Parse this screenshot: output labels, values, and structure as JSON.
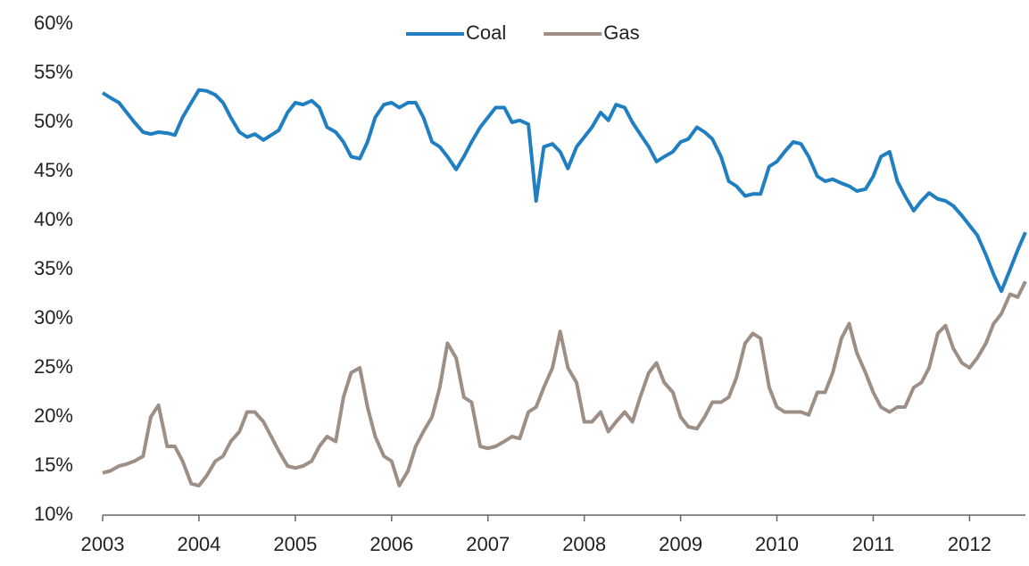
{
  "chart_data": {
    "type": "line",
    "x": [
      2003,
      2003.08,
      2003.17,
      2003.25,
      2003.33,
      2003.42,
      2003.5,
      2003.58,
      2003.67,
      2003.75,
      2003.83,
      2003.92,
      2004,
      2004.08,
      2004.17,
      2004.25,
      2004.33,
      2004.42,
      2004.5,
      2004.58,
      2004.67,
      2004.75,
      2004.83,
      2004.92,
      2005,
      2005.08,
      2005.17,
      2005.25,
      2005.33,
      2005.42,
      2005.5,
      2005.58,
      2005.67,
      2005.75,
      2005.83,
      2005.92,
      2006,
      2006.08,
      2006.17,
      2006.25,
      2006.33,
      2006.42,
      2006.5,
      2006.58,
      2006.67,
      2006.75,
      2006.83,
      2006.92,
      2007,
      2007.08,
      2007.17,
      2007.25,
      2007.33,
      2007.42,
      2007.5,
      2007.58,
      2007.67,
      2007.75,
      2007.83,
      2007.92,
      2008,
      2008.08,
      2008.17,
      2008.25,
      2008.33,
      2008.42,
      2008.5,
      2008.58,
      2008.67,
      2008.75,
      2008.83,
      2008.92,
      2009,
      2009.08,
      2009.17,
      2009.25,
      2009.33,
      2009.42,
      2009.5,
      2009.58,
      2009.67,
      2009.75,
      2009.83,
      2009.92,
      2010,
      2010.08,
      2010.17,
      2010.25,
      2010.33,
      2010.42,
      2010.5,
      2010.58,
      2010.67,
      2010.75,
      2010.83,
      2010.92,
      2011,
      2011.08,
      2011.17,
      2011.25,
      2011.33,
      2011.42,
      2011.5,
      2011.58,
      2011.67,
      2011.75,
      2011.83,
      2011.92,
      2012,
      2012.08,
      2012.17,
      2012.25,
      2012.33,
      2012.42,
      2012.5,
      2012.58
    ],
    "series": [
      {
        "name": "Coal",
        "color": "#1f7fc1",
        "values": [
          53,
          52.5,
          52,
          51,
          50,
          49,
          48.8,
          49,
          48.9,
          48.7,
          50.5,
          52,
          53.3,
          53.2,
          52.8,
          52,
          50.5,
          49,
          48.5,
          48.8,
          48.2,
          48.7,
          49.2,
          51,
          52,
          51.8,
          52.2,
          51.5,
          49.5,
          49,
          48,
          46.5,
          46.3,
          48,
          50.5,
          51.8,
          52,
          51.5,
          52,
          52,
          50.5,
          48,
          47.5,
          46.5,
          45.2,
          46.5,
          48,
          49.5,
          50.5,
          51.5,
          51.5,
          50,
          50.2,
          49.8,
          42,
          47.5,
          47.8,
          47,
          45.3,
          47.5,
          48.5,
          49.5,
          51,
          50.2,
          51.8,
          51.5,
          50,
          48.8,
          47.5,
          46,
          46.5,
          47,
          48,
          48.3,
          49.5,
          49,
          48.3,
          46.5,
          44,
          43.5,
          42.5,
          42.7,
          42.7,
          45.5,
          46,
          47,
          48,
          47.8,
          46.5,
          44.5,
          44,
          44.2,
          43.8,
          43.5,
          43,
          43.2,
          44.5,
          46.5,
          47,
          44,
          42.5,
          41,
          42,
          42.8,
          42.2,
          42,
          41.5,
          40.5,
          39.5,
          38.5,
          36.5,
          34.5,
          32.8,
          35,
          37,
          38.8
        ]
      },
      {
        "name": "Gas",
        "color": "#9d8f86",
        "values": [
          14.3,
          14.5,
          15,
          15.2,
          15.5,
          16,
          20,
          21.2,
          17,
          17,
          15.5,
          13.2,
          13,
          14,
          15.5,
          16,
          17.5,
          18.5,
          20.5,
          20.5,
          19.5,
          18,
          16.5,
          15,
          14.8,
          15,
          15.5,
          17,
          18,
          17.5,
          22,
          24.5,
          25,
          21,
          18,
          16,
          15.5,
          13,
          14.5,
          17,
          18.5,
          20,
          23,
          27.5,
          26,
          22,
          21.5,
          17,
          16.8,
          17,
          17.5,
          18,
          17.8,
          20.5,
          21,
          23,
          25,
          28.7,
          25,
          23.5,
          19.5,
          19.5,
          20.5,
          18.5,
          19.5,
          20.5,
          19.5,
          22,
          24.5,
          25.5,
          23.5,
          22.5,
          20,
          19,
          18.8,
          20,
          21.5,
          21.5,
          22,
          24,
          27.5,
          28.5,
          28,
          23,
          21,
          20.5,
          20.5,
          20.5,
          20.2,
          22.5,
          22.5,
          24.5,
          28,
          29.5,
          26.5,
          24.5,
          22.5,
          21,
          20.5,
          21,
          21,
          23,
          23.5,
          25,
          28.5,
          29.3,
          27,
          25.5,
          25,
          26,
          27.5,
          29.5,
          30.5,
          32.5,
          32.2,
          33.8
        ]
      }
    ],
    "xlim": [
      2003,
      2012.58
    ],
    "xticks": [
      2003,
      2004,
      2005,
      2006,
      2007,
      2008,
      2009,
      2010,
      2011,
      2012
    ],
    "ylim": [
      10,
      60
    ],
    "yticks": [
      {
        "value": 10,
        "label": "10%"
      },
      {
        "value": 15,
        "label": "15%"
      },
      {
        "value": 20,
        "label": "20%"
      },
      {
        "value": 25,
        "label": "25%"
      },
      {
        "value": 30,
        "label": "30%"
      },
      {
        "value": 35,
        "label": "35%"
      },
      {
        "value": 40,
        "label": "40%"
      },
      {
        "value": 45,
        "label": "45%"
      },
      {
        "value": 50,
        "label": "50%"
      },
      {
        "value": 55,
        "label": "55%"
      },
      {
        "value": 60,
        "label": "60%"
      }
    ],
    "legend": "top"
  }
}
